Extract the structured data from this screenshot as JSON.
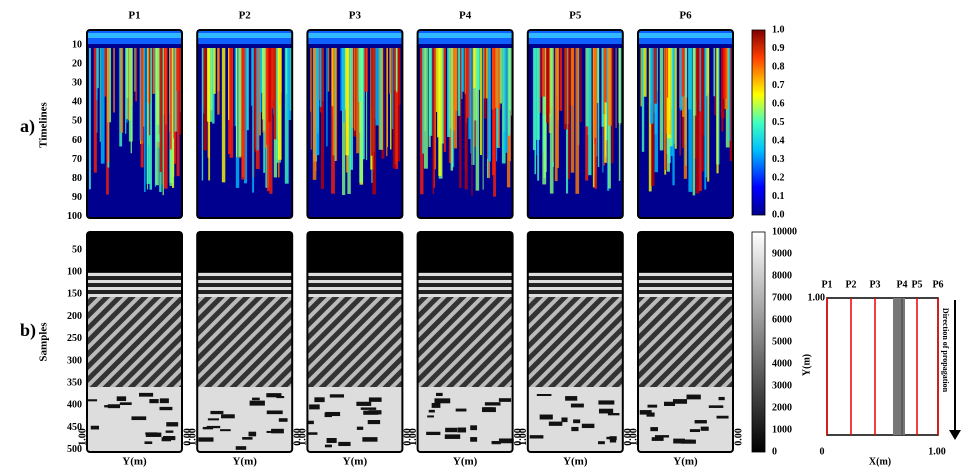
{
  "panel_labels": [
    "a)",
    "b)"
  ],
  "columns": [
    "P1",
    "P2",
    "P3",
    "P4",
    "P5",
    "P6"
  ],
  "top": {
    "ylabel": "Timelines",
    "yticks": [
      "10",
      "20",
      "30",
      "40",
      "50",
      "60",
      "70",
      "80",
      "90",
      "100"
    ],
    "colorbar_ticks": [
      "1.0",
      "0.9",
      "0.8",
      "0.7",
      "0.6",
      "0.5",
      "0.4",
      "0.3",
      "0.2",
      "0.1",
      "0.0"
    ]
  },
  "bottom": {
    "ylabel": "Samples",
    "yticks": [
      "50",
      "100",
      "150",
      "200",
      "250",
      "300",
      "350",
      "400",
      "450",
      "500"
    ],
    "colorbar_ticks": [
      "10000",
      "9000",
      "8000",
      "7000",
      "6000",
      "5000",
      "4000",
      "3000",
      "2000",
      "1000",
      "0"
    ],
    "xticks": [
      "1.00",
      "0.00"
    ],
    "xlabel": "Y(m)"
  },
  "inset": {
    "columns": [
      "P1",
      "P2",
      "P3",
      "P4",
      "P5",
      "P6"
    ],
    "ylabel": "Y(m)",
    "xlabel": "X(m)",
    "y_top": "1.00",
    "x_left": "0",
    "x_right": "1.00",
    "arrow_label": "Direction of propagation"
  }
}
